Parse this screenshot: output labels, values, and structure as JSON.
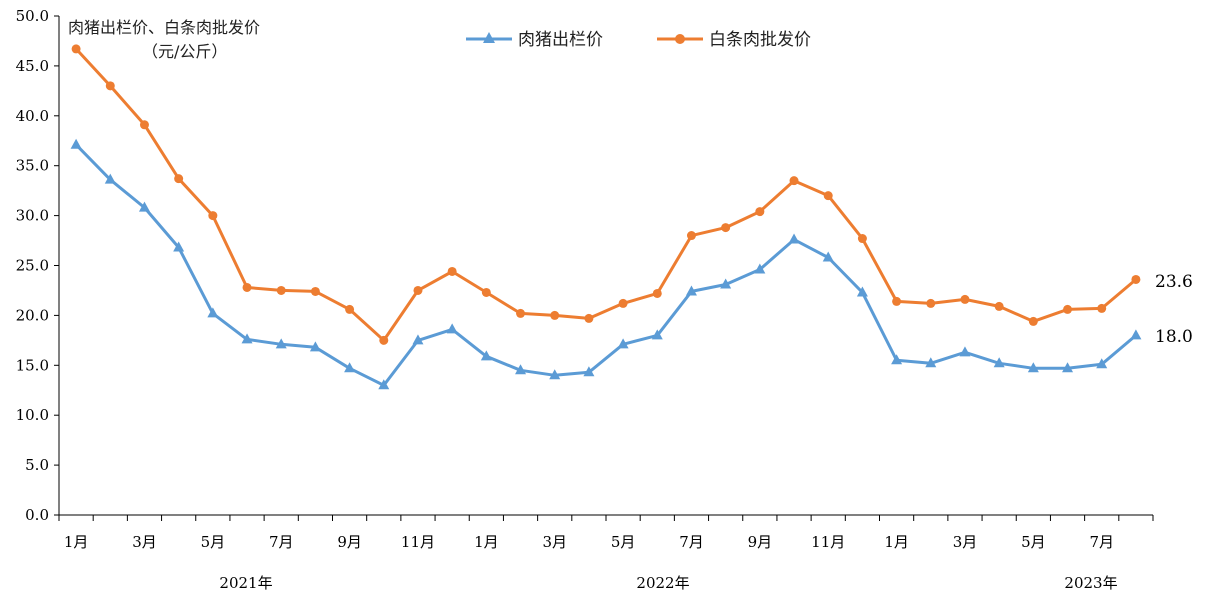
{
  "chart_data": {
    "type": "line",
    "unit_note_line1": "肉猪出栏价、白条肉批发价",
    "unit_note_line2": "（元/公斤）",
    "ylim": [
      0,
      50
    ],
    "yticks": [
      "0.0",
      "5.0",
      "10.0",
      "15.0",
      "20.0",
      "25.0",
      "30.0",
      "35.0",
      "40.0",
      "45.0",
      "50.0"
    ],
    "x": [
      "2021-01",
      "2021-02",
      "2021-03",
      "2021-04",
      "2021-05",
      "2021-06",
      "2021-07",
      "2021-08",
      "2021-09",
      "2021-10",
      "2021-11",
      "2021-12",
      "2022-01",
      "2022-02",
      "2022-03",
      "2022-04",
      "2022-05",
      "2022-06",
      "2022-07",
      "2022-08",
      "2022-09",
      "2022-10",
      "2022-11",
      "2022-12",
      "2023-01",
      "2023-02",
      "2023-03",
      "2023-04",
      "2023-05",
      "2023-06",
      "2023-07",
      "2023-08"
    ],
    "xtick_labels": [
      "1月",
      "3月",
      "5月",
      "7月",
      "9月",
      "11月",
      "1月",
      "3月",
      "5月",
      "7月",
      "9月",
      "11月",
      "1月",
      "3月",
      "5月",
      "7月"
    ],
    "year_labels": [
      "2021年",
      "2022年",
      "2023年"
    ],
    "series": [
      {
        "name": "肉猪出栏价",
        "color": "#5b9bd5",
        "marker": "triangle",
        "values": [
          37.1,
          33.6,
          30.8,
          26.8,
          20.2,
          17.6,
          17.1,
          16.8,
          14.7,
          13.0,
          17.5,
          18.6,
          15.9,
          14.5,
          14.0,
          14.3,
          17.1,
          18.0,
          22.4,
          23.1,
          24.6,
          27.6,
          25.8,
          22.3,
          15.5,
          15.2,
          16.3,
          15.2,
          14.7,
          14.7,
          15.1,
          18.0
        ],
        "end_label": "18.0"
      },
      {
        "name": "白条肉批发价",
        "color": "#ed7d31",
        "marker": "circle",
        "values": [
          46.7,
          43.0,
          39.1,
          33.7,
          30.0,
          22.8,
          22.5,
          22.4,
          20.6,
          17.5,
          22.5,
          24.4,
          22.3,
          20.2,
          20.0,
          19.7,
          21.2,
          22.2,
          28.0,
          28.8,
          30.4,
          33.5,
          32.0,
          27.7,
          21.4,
          21.2,
          21.6,
          20.9,
          19.4,
          20.6,
          20.7,
          23.6
        ],
        "end_label": "23.6"
      }
    ],
    "legend_position": "top-center",
    "grid": false
  }
}
